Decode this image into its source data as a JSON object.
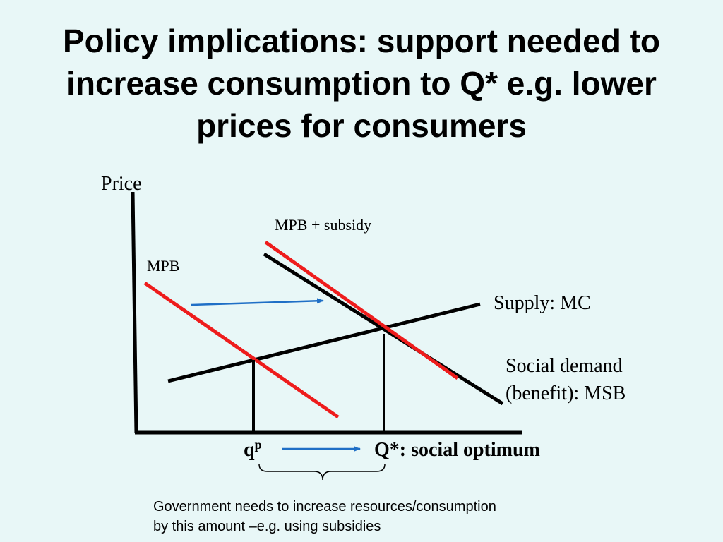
{
  "title": "Policy implications: support needed to increase consumption to Q* e.g. lower prices for consumers",
  "diagram": {
    "y_axis_label": "Price",
    "mpb_label": "MPB",
    "mpb_subsidy_label": "MPB + subsidy",
    "supply_label": "Supply: MC",
    "msb_label_line1": "Social demand",
    "msb_label_line2": "(benefit): MSB",
    "qp_label_base": "q",
    "qp_label_sup": "p",
    "qstar_label": "Q*: social optimum",
    "colors": {
      "background": "#e8f7f7",
      "demand_curves": "#ee1c1c",
      "arrows": "#1f6fc6",
      "lines": "#000000"
    }
  },
  "note": {
    "line1": "Government needs to increase resources/consumption",
    "line2": "by this amount –e.g. using subsidies"
  }
}
